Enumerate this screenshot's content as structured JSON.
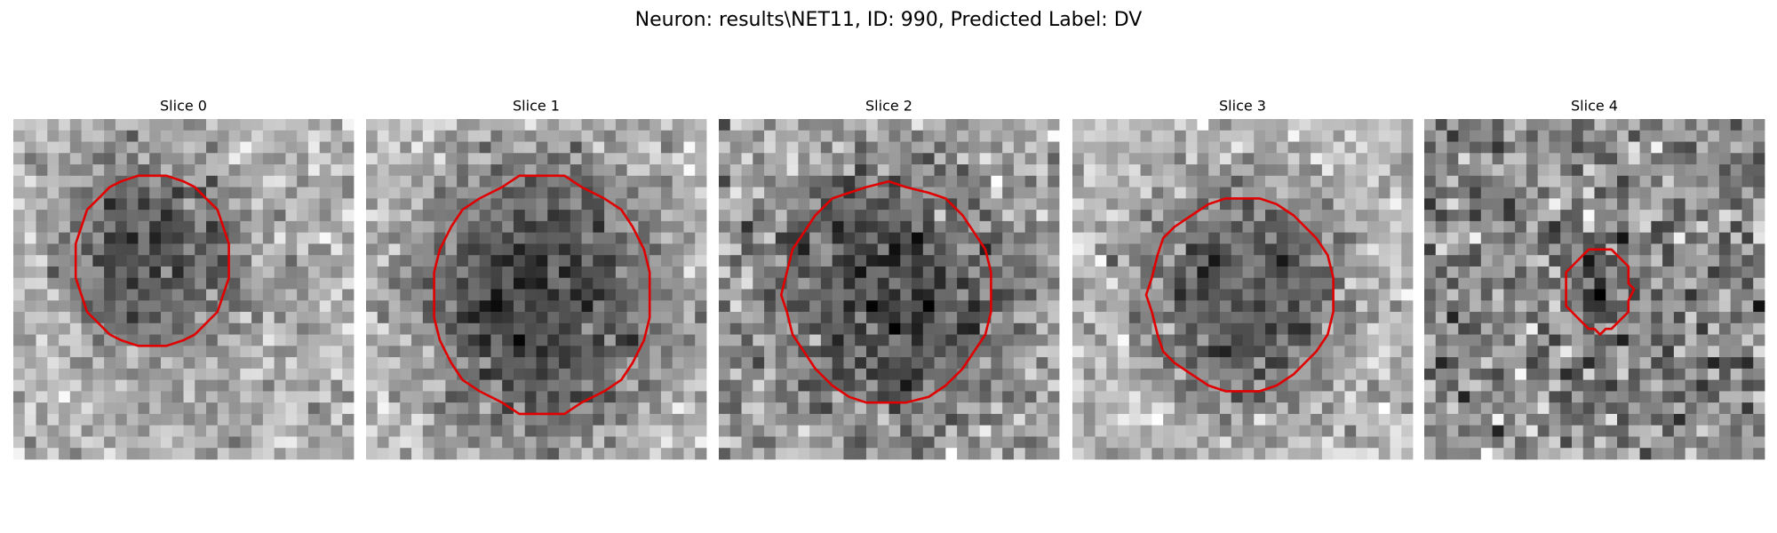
{
  "title": "Neuron: results\\NET11, ID: 990, Predicted Label: DV",
  "panels": [
    {
      "label": "Slice 0"
    },
    {
      "label": "Slice 1"
    },
    {
      "label": "Slice 2"
    },
    {
      "label": "Slice 3"
    },
    {
      "label": "Slice 4"
    }
  ]
}
